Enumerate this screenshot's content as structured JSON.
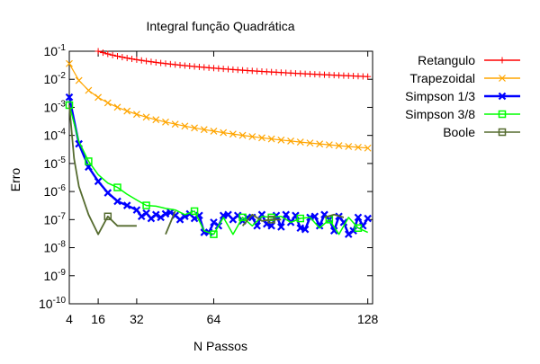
{
  "chart_data": {
    "type": "line",
    "title": "Integral função Quadrática",
    "xlabel": "N Passos",
    "ylabel": "Erro",
    "xlim": [
      4,
      130
    ],
    "ylim_log10": [
      -10,
      -1
    ],
    "y_scale": "log",
    "x_ticks": [
      {
        "value": 4,
        "label": "4"
      },
      {
        "value": 16,
        "label": "16"
      },
      {
        "value": 32,
        "label": "32"
      },
      {
        "value": 64,
        "label": "64"
      },
      {
        "value": 128,
        "label": "128"
      }
    ],
    "y_ticks": [
      {
        "exp": -1,
        "base": "10",
        "sup": "-1"
      },
      {
        "exp": -2,
        "base": "10",
        "sup": "-2"
      },
      {
        "exp": -3,
        "base": "10",
        "sup": "-3"
      },
      {
        "exp": -4,
        "base": "10",
        "sup": "-4"
      },
      {
        "exp": -5,
        "base": "10",
        "sup": "-5"
      },
      {
        "exp": -6,
        "base": "10",
        "sup": "-6"
      },
      {
        "exp": -7,
        "base": "10",
        "sup": "-7"
      },
      {
        "exp": -8,
        "base": "10",
        "sup": "-8"
      },
      {
        "exp": -9,
        "base": "10",
        "sup": "-9"
      },
      {
        "exp": -10,
        "base": "10",
        "sup": "-10"
      }
    ],
    "grid": false,
    "legend_position": "right",
    "series": [
      {
        "name": "Retangulo",
        "color": "#ff0000",
        "marker": "plus",
        "kind": "func",
        "coef": 1.6,
        "pow": 1,
        "start": 16,
        "step": 2,
        "end": 128
      },
      {
        "name": "Trapezoidal",
        "color": "#ffa500",
        "marker": "cross",
        "kind": "func",
        "coef": 0.58,
        "pow": 2,
        "start": 4,
        "step": 4,
        "end": 128
      },
      {
        "name": "Simpson 1/3",
        "color": "#0000ff",
        "marker": "x-thick",
        "kind": "points",
        "points": [
          [
            4,
            0.0023
          ],
          [
            8,
            5e-05
          ],
          [
            12,
            7.5e-06
          ],
          [
            16,
            2.3e-06
          ],
          [
            20,
            9e-07
          ],
          [
            24,
            4.5e-07
          ],
          [
            28,
            3.2e-07
          ],
          [
            32,
            2.2e-07
          ],
          [
            34,
            1.3e-07
          ],
          [
            36,
            1.7e-07
          ],
          [
            38,
            1.1e-07
          ],
          [
            40,
            1.5e-07
          ],
          [
            42,
            1.2e-07
          ],
          [
            44,
            1.6e-07
          ],
          [
            46,
            1.8e-07
          ],
          [
            48,
            1.4e-07
          ],
          [
            50,
            1e-07
          ],
          [
            52,
            1.3e-07
          ],
          [
            54,
            1.6e-07
          ],
          [
            56,
            1.1e-07
          ],
          [
            58,
            1.4e-07
          ],
          [
            60,
            3.5e-08
          ],
          [
            62,
            3.5e-08
          ],
          [
            64,
            8e-08
          ],
          [
            66,
            6e-08
          ],
          [
            68,
            1.4e-07
          ],
          [
            70,
            1.5e-07
          ],
          [
            72,
            1e-07
          ],
          [
            74,
            1.4e-07
          ],
          [
            76,
            9e-08
          ],
          [
            78,
            1.2e-07
          ],
          [
            80,
            1.2e-07
          ],
          [
            82,
            6e-08
          ],
          [
            84,
            1.5e-07
          ],
          [
            86,
            7e-08
          ],
          [
            88,
            6e-08
          ],
          [
            90,
            1.4e-07
          ],
          [
            92,
            5.5e-08
          ],
          [
            94,
            1.5e-07
          ],
          [
            96,
            8e-08
          ],
          [
            98,
            1.4e-07
          ],
          [
            100,
            5e-08
          ],
          [
            102,
            4.5e-08
          ],
          [
            104,
            1.2e-07
          ],
          [
            106,
            1.3e-07
          ],
          [
            108,
            6e-08
          ],
          [
            110,
            1.5e-07
          ],
          [
            112,
            1e-07
          ],
          [
            114,
            4e-08
          ],
          [
            116,
            1.3e-07
          ],
          [
            118,
            8e-08
          ],
          [
            120,
            3e-08
          ],
          [
            122,
            4e-08
          ],
          [
            124,
            1.2e-07
          ],
          [
            126,
            6e-08
          ],
          [
            128,
            1.1e-07
          ]
        ]
      },
      {
        "name": "Simpson 3/8",
        "color": "#00ff00",
        "marker": "square",
        "kind": "points",
        "points": [
          [
            4,
            0.0012
          ],
          [
            8,
            6e-05
          ],
          [
            12,
            1.2e-05
          ],
          [
            16,
            4e-06
          ],
          [
            20,
            2e-06
          ],
          [
            24,
            1.4e-06
          ],
          [
            28,
            8e-07
          ],
          [
            32,
            5e-07
          ],
          [
            36,
            3.2e-07
          ],
          [
            40,
            3e-07
          ],
          [
            44,
            2.5e-07
          ],
          [
            48,
            2.2e-07
          ],
          [
            52,
            1.5e-07
          ],
          [
            56,
            2e-07
          ],
          [
            60,
            4e-08
          ],
          [
            64,
            3e-08
          ],
          [
            68,
            1.2e-07
          ],
          [
            72,
            3e-08
          ],
          [
            76,
            1.2e-07
          ],
          [
            80,
            6e-08
          ],
          [
            84,
            1.3e-07
          ],
          [
            88,
            1.2e-07
          ],
          [
            92,
            1.3e-07
          ],
          [
            96,
            8e-08
          ],
          [
            100,
            1.1e-07
          ],
          [
            104,
            1.2e-07
          ],
          [
            108,
            5e-08
          ],
          [
            112,
            1e-07
          ],
          [
            116,
            3e-08
          ],
          [
            120,
            1.2e-07
          ],
          [
            124,
            5e-08
          ],
          [
            128,
            3.5e-08
          ]
        ],
        "markers_at": [
          4,
          12,
          24,
          36,
          56,
          64,
          76,
          88,
          100,
          112,
          124
        ]
      },
      {
        "name": "Boole",
        "color": "#556b2f",
        "marker": "square",
        "kind": "segments",
        "segments": [
          [
            [
              4,
              0.0012
            ],
            [
              6,
              1.5e-05
            ],
            [
              8,
              1.5e-06
            ],
            [
              12,
              1.5e-07
            ],
            [
              16,
              3e-08
            ],
            [
              20,
              1.3e-07
            ],
            [
              24,
              6e-08
            ],
            [
              32,
              6e-08
            ]
          ],
          [
            [
              44,
              3e-08
            ],
            [
              48,
              2e-07
            ]
          ],
          [
            [
              76,
              6e-08
            ],
            [
              80,
              1.5e-07
            ],
            [
              84,
              9e-08
            ],
            [
              88,
              1e-07
            ],
            [
              92,
              1e-07
            ]
          ],
          [
            [
              110,
              1.2e-07
            ],
            [
              114,
              1.5e-07
            ],
            [
              118,
              1.2e-07
            ]
          ]
        ],
        "markers_at": [
          [
            20,
            1.3e-07
          ],
          [
            88,
            1e-07
          ]
        ]
      }
    ]
  }
}
